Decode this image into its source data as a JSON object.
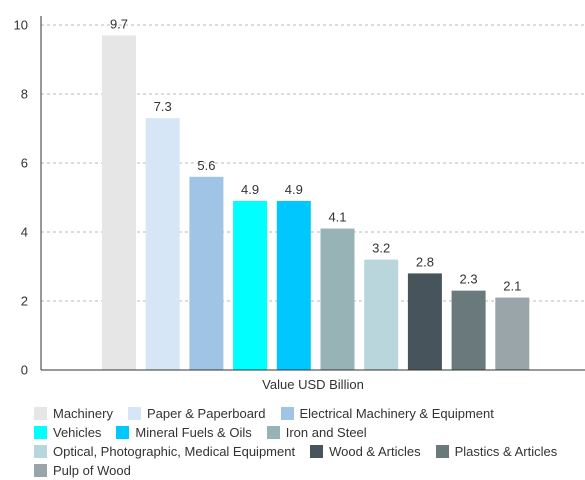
{
  "chart_data": {
    "type": "bar",
    "title": "",
    "xlabel": "Value USD Billion",
    "ylabel": "",
    "ylim": [
      0,
      10
    ],
    "yticks": [
      "0",
      "2",
      "4",
      "6",
      "8",
      "10"
    ],
    "grid": true,
    "legend_position": "bottom",
    "categories": [
      "Machinery",
      "Paper & Paperboard",
      "Electrical Machinery & Equipment",
      "Vehicles",
      "Mineral Fuels & Oils",
      "Iron and Steel",
      "Optical, Photographic, Medical Equipment",
      "Wood & Articles",
      "Plastics & Articles",
      "Pulp of Wood"
    ],
    "values": [
      9.7,
      7.3,
      5.6,
      4.9,
      4.9,
      4.1,
      3.2,
      2.8,
      2.3,
      2.1
    ],
    "value_labels": [
      "9.7",
      "7.3",
      "5.6",
      "4.9",
      "4.9",
      "4.1",
      "3.2",
      "2.8",
      "2.3",
      "2.1"
    ],
    "colors": [
      "#e6e6e6",
      "#d6e6f6",
      "#9fc4e6",
      "#00ffff",
      "#00c8ff",
      "#97b3b6",
      "#b8d6dc",
      "#47545b",
      "#6a7a7c",
      "#99a5a8"
    ]
  }
}
